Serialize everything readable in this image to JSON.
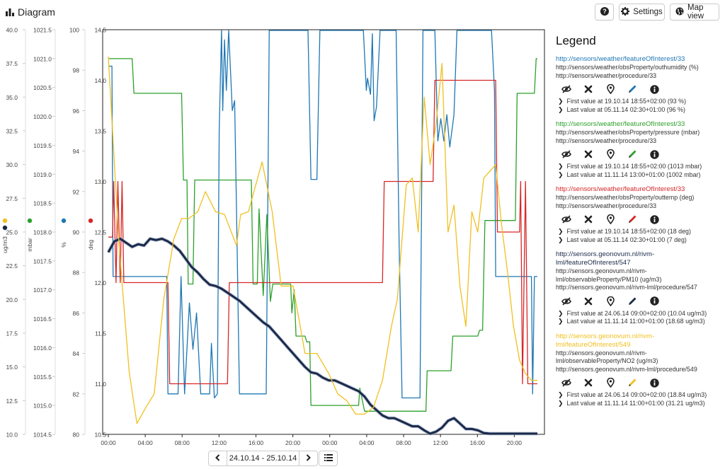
{
  "header": {
    "title": "Diagram",
    "settings_label": "Settings",
    "mapview_label": "Map view"
  },
  "legend": {
    "title": "Legend",
    "entries": [
      {
        "link": "http://sensors/weather/featureOfInterest/33",
        "property": "http://sensors/weather/obsProperty/outhumidity (%)",
        "procedure": "http://sensors/weather/procedure/33",
        "first": "First value at 19.10.14 18:55+02:00 (93 %)",
        "last": "Last value at 05.11.14 02:30+01:00 (96 %)",
        "color": "#1f77b4"
      },
      {
        "link": "http://sensors/weather/featureOfInterest/33",
        "property": "http://sensors/weather/obsProperty/pressure (mbar)",
        "procedure": "http://sensors/weather/procedure/33",
        "first": "First value at 19.10.14 18:55+02:00 (1013 mbar)",
        "last": "Last value at 11.11.14 13:00+01:00 (1002 mbar)",
        "color": "#2ca02c"
      },
      {
        "link": "http://sensors/weather/featureOfInterest/33",
        "property": "http://sensors/weather/obsProperty/outtemp (deg)",
        "procedure": "http://sensors/weather/procedure/33",
        "first": "First value at 19.10.14 18:55+02:00 (18 deg)",
        "last": "Last value at 05.11.14 02:30+01:00 (7 deg)",
        "color": "#d62728"
      },
      {
        "link": "http://sensors.geonovum.nl/rivm-lml/featureOfInterest/547",
        "property": "http://sensors.geonovum.nl/rivm-lml/observableProperty/PM10 (ug/m3)",
        "procedure": "http://sensors.geonovum.nl/rivm-lml/procedure/547",
        "first": "First value at 24.06.14 09:00+02:00 (10.04 ug/m3)",
        "last": "Last value at 11.11.14 11:00+01:00 (18.68 ug/m3)",
        "color": "#1b2a4a"
      },
      {
        "link": "http://sensors.geonovum.nl/rivm-lml/featureOfInterest/549",
        "property": "http://sensors.geonovum.nl/rivm-lml/observableProperty/NO2 (ug/m3)",
        "procedure": "http://sensors.geonovum.nl/rivm-lml/procedure/549",
        "first": "First value at 24.06.14 09:00+02:00 (18.84 ug/m3)",
        "last": "Last value at 11.11.14 11:00+01:00 (31.21 ug/m3)",
        "color": "#f0c020"
      }
    ]
  },
  "time_nav": {
    "range_label": "24.10.14 - 25.10.14"
  },
  "chart_data": {
    "type": "line",
    "x_ticks": [
      "00:00",
      "04:00",
      "08:00",
      "12:00",
      "16:00",
      "20:00",
      "00:00",
      "04:00",
      "08:00",
      "12:00",
      "16:00",
      "20:00"
    ],
    "x_range_hours": [
      0,
      48
    ],
    "axes": [
      {
        "label": "ug/m3",
        "min": 10.0,
        "max": 40.0,
        "ticks": [
          "10.0",
          "12.5",
          "15.0",
          "17.5",
          "20.0",
          "22.5",
          "25.0",
          "27.5",
          "30.0",
          "32.5",
          "35.0",
          "37.5",
          "40.0"
        ],
        "dot_color": "#f0c020",
        "dot_color2": "#1b2a4a"
      },
      {
        "label": "mbar",
        "min": 1014.5,
        "max": 1021.5,
        "ticks": [
          "1014.5",
          "1015.0",
          "1015.5",
          "1016.0",
          "1016.5",
          "1017.0",
          "1017.5",
          "1018.0",
          "1018.5",
          "1019.0",
          "1019.5",
          "1020.0",
          "1020.5",
          "1021.0",
          "1021.5"
        ],
        "dot_color": "#2ca02c"
      },
      {
        "label": "%",
        "min": 80,
        "max": 100,
        "ticks": [
          "80",
          "82",
          "84",
          "86",
          "88",
          "90",
          "92",
          "94",
          "96",
          "98",
          "100"
        ],
        "dot_color": "#1f77b4"
      },
      {
        "label": "deg",
        "min": 10.5,
        "max": 14.5,
        "ticks": [
          "10.5",
          "11.0",
          "11.5",
          "12.0",
          "12.5",
          "13.0",
          "13.5",
          "14.0",
          "14.5"
        ],
        "dot_color": "#d62728"
      }
    ],
    "series": [
      {
        "axis": 2,
        "color": "#1f77b4",
        "width": 1.3,
        "points": [
          [
            0,
            98.2
          ],
          [
            0.6,
            98.2
          ],
          [
            0.8,
            87.8
          ],
          [
            9.8,
            87.8
          ],
          [
            10,
            82
          ],
          [
            11.7,
            82
          ],
          [
            12.2,
            87.8
          ],
          [
            12.8,
            82
          ],
          [
            13.6,
            86.5
          ],
          [
            14.2,
            84.2
          ],
          [
            14.8,
            86
          ],
          [
            15.5,
            82
          ],
          [
            17,
            82
          ],
          [
            17.3,
            84.5
          ],
          [
            17.8,
            81.8
          ],
          [
            18.3,
            82
          ],
          [
            18.6,
            95
          ],
          [
            19,
            100
          ],
          [
            19.2,
            96
          ],
          [
            19.5,
            99.5
          ],
          [
            19.8,
            97
          ],
          [
            20.2,
            100
          ],
          [
            20.8,
            96
          ],
          [
            21.2,
            96.5
          ],
          [
            21.6,
            89.5
          ],
          [
            22,
            82
          ],
          [
            26.5,
            82
          ],
          [
            27,
            100
          ],
          [
            33.5,
            100
          ],
          [
            34,
            92.6
          ],
          [
            35,
            92.6
          ],
          [
            35.5,
            100
          ],
          [
            42.8,
            100
          ],
          [
            43.3,
            97
          ],
          [
            43.5,
            97.6
          ],
          [
            44,
            96.8
          ],
          [
            44.3,
            99.8
          ],
          [
            44.6,
            95.5
          ],
          [
            45,
            96.2
          ],
          [
            45.6,
            100
          ],
          [
            48.3,
            100
          ],
          [
            48.8,
            89.5
          ],
          [
            49.3,
            81.8
          ],
          [
            52.3,
            81.8
          ],
          [
            52.8,
            100
          ],
          [
            54.8,
            100
          ],
          [
            55.3,
            94.5
          ],
          [
            55.8,
            95.6
          ],
          [
            56.3,
            94.5
          ],
          [
            56.8,
            95.8
          ],
          [
            57.3,
            94.2
          ],
          [
            58,
            95.8
          ],
          [
            58.5,
            100
          ],
          [
            64.3,
            100
          ],
          [
            64.8,
            97
          ],
          [
            65,
            87.8
          ],
          [
            71,
            87.8
          ],
          [
            71.2,
            82
          ],
          [
            71.5,
            87.8
          ],
          [
            72,
            87.8
          ]
        ]
      },
      {
        "axis": 1,
        "color": "#2ca02c",
        "width": 1.3,
        "points": [
          [
            0,
            1021.0
          ],
          [
            4,
            1021.0
          ],
          [
            4.3,
            1020.4
          ],
          [
            12.3,
            1020.4
          ],
          [
            12.6,
            1018.9
          ],
          [
            13.2,
            1018.9
          ],
          [
            13.4,
            1017.1
          ],
          [
            14.2,
            1017.1
          ],
          [
            14.5,
            1018.9
          ],
          [
            24,
            1018.9
          ],
          [
            24.3,
            1017.1
          ],
          [
            25,
            1017.1
          ],
          [
            25.3,
            1018.4
          ],
          [
            26,
            1016.9
          ],
          [
            26.6,
            1018.3
          ],
          [
            27.2,
            1016.8
          ],
          [
            27.6,
            1017.1
          ],
          [
            30.6,
            1017.1
          ],
          [
            30.8,
            1016.6
          ],
          [
            31.2,
            1017.0
          ],
          [
            31.5,
            1016.2
          ],
          [
            33,
            1016.2
          ],
          [
            33.3,
            1016.1
          ],
          [
            33.8,
            1016.1
          ],
          [
            34,
            1015
          ],
          [
            42,
            1015
          ],
          [
            42.2,
            1015.3
          ],
          [
            43,
            1014.9
          ],
          [
            53.3,
            1014.9
          ],
          [
            53.5,
            1015.6
          ],
          [
            57.5,
            1015.6
          ],
          [
            57.8,
            1016.2
          ],
          [
            62,
            1016.2
          ],
          [
            62.3,
            1016.3
          ],
          [
            62.8,
            1016.3
          ],
          [
            63.2,
            1018.2
          ],
          [
            68.3,
            1018.2
          ],
          [
            68.6,
            1020.4
          ],
          [
            71.5,
            1020.4
          ],
          [
            71.8,
            1021.0
          ],
          [
            72,
            1021.0
          ]
        ]
      },
      {
        "axis": 3,
        "color": "#d62728",
        "width": 1.3,
        "points": [
          [
            0,
            12.45
          ],
          [
            0.7,
            12.45
          ],
          [
            0.9,
            13.0
          ],
          [
            1.3,
            12.0
          ],
          [
            1.6,
            13.0
          ],
          [
            2,
            12.0
          ],
          [
            2.3,
            13.0
          ],
          [
            2.6,
            12.0
          ],
          [
            3,
            12.0
          ],
          [
            10,
            12.0
          ],
          [
            10.3,
            11.0
          ],
          [
            20,
            11.0
          ],
          [
            20.3,
            12.0
          ],
          [
            46,
            12.0
          ],
          [
            46.3,
            13.0
          ],
          [
            54.5,
            13.0
          ],
          [
            54.8,
            14.0
          ],
          [
            65,
            14.0
          ],
          [
            65.3,
            12.5
          ],
          [
            69,
            12.5
          ],
          [
            69.2,
            13.0
          ],
          [
            69.5,
            11.0
          ],
          [
            70,
            13.0
          ],
          [
            70.4,
            11.0
          ],
          [
            72,
            11.0
          ]
        ]
      },
      {
        "axis": 0,
        "color": "#1b2a4a",
        "width": 3.0,
        "points": [
          [
            0,
            23.5
          ],
          [
            1,
            24.3
          ],
          [
            2,
            24.5
          ],
          [
            3,
            24.2
          ],
          [
            4,
            23.9
          ],
          [
            5,
            24.1
          ],
          [
            6,
            24.0
          ],
          [
            7,
            24.5
          ],
          [
            8,
            24.4
          ],
          [
            9,
            24.5
          ],
          [
            10,
            24.3
          ],
          [
            11,
            24.0
          ],
          [
            12,
            23.6
          ],
          [
            13,
            23.0
          ],
          [
            14,
            22.4
          ],
          [
            15,
            22.0
          ],
          [
            16,
            21.5
          ],
          [
            17,
            21.1
          ],
          [
            18,
            21.0
          ],
          [
            19,
            20.8
          ],
          [
            20,
            20.5
          ],
          [
            21,
            20.2
          ],
          [
            22,
            19.9
          ],
          [
            23,
            19.5
          ],
          [
            24,
            19.1
          ],
          [
            25,
            18.7
          ],
          [
            26,
            18.3
          ],
          [
            27,
            18.0
          ],
          [
            28,
            17.5
          ],
          [
            29,
            17.0
          ],
          [
            30,
            16.5
          ],
          [
            31,
            16.0
          ],
          [
            32,
            15.5
          ],
          [
            33,
            15.0
          ],
          [
            34,
            14.6
          ],
          [
            35,
            14.5
          ],
          [
            36,
            14.2
          ],
          [
            37,
            14.0
          ],
          [
            38,
            14.0
          ],
          [
            39,
            13.8
          ],
          [
            40,
            13.6
          ],
          [
            41,
            13.4
          ],
          [
            42,
            13.2
          ],
          [
            43,
            12.8
          ],
          [
            44,
            12.2
          ],
          [
            45,
            11.8
          ],
          [
            46,
            11.4
          ],
          [
            47,
            11.2
          ],
          [
            48,
            11.2
          ],
          [
            49,
            11.0
          ],
          [
            50,
            10.8
          ],
          [
            51,
            10.6
          ],
          [
            52,
            10.6
          ],
          [
            53,
            10.3
          ],
          [
            54,
            10.0
          ],
          [
            55,
            10.2
          ],
          [
            56,
            10.5
          ],
          [
            57,
            11.0
          ],
          [
            58,
            11.2
          ],
          [
            59,
            10.8
          ],
          [
            60,
            10.4
          ],
          [
            61,
            10.4
          ],
          [
            62,
            10.3
          ],
          [
            63,
            10.1
          ],
          [
            64,
            9.9
          ],
          [
            65,
            9.7
          ],
          [
            66,
            9.6
          ],
          [
            67,
            9.6
          ],
          [
            68,
            9.7
          ],
          [
            69,
            9.6
          ],
          [
            70,
            9.7
          ],
          [
            71,
            9.6
          ],
          [
            72,
            9.5
          ]
        ]
      },
      {
        "axis": 0,
        "color": "#f0c020",
        "width": 1.3,
        "points": [
          [
            0,
            38.0
          ],
          [
            1.8,
            24.0
          ],
          [
            3.5,
            14.6
          ],
          [
            4.8,
            10.8
          ],
          [
            6.3,
            12.0
          ],
          [
            7.7,
            13.0
          ],
          [
            9.3,
            20.0
          ],
          [
            11,
            24.5
          ],
          [
            12.3,
            26.0
          ],
          [
            13.5,
            26.0
          ],
          [
            15,
            26.5
          ],
          [
            16.3,
            28.0
          ],
          [
            18,
            26.5
          ],
          [
            19.5,
            26.3
          ],
          [
            21.5,
            24.0
          ],
          [
            22.2,
            26.3
          ],
          [
            23.5,
            26.5
          ],
          [
            25.8,
            30.2
          ],
          [
            27.5,
            26.5
          ],
          [
            29,
            21.0
          ],
          [
            31,
            21.0
          ],
          [
            33,
            16.0
          ],
          [
            35,
            16.0
          ],
          [
            37,
            14.5
          ],
          [
            38.5,
            13.0
          ],
          [
            40,
            12.5
          ],
          [
            41.5,
            11.5
          ],
          [
            43,
            11.5
          ],
          [
            44.5,
            12.0
          ],
          [
            46,
            14.0
          ],
          [
            47.5,
            18.0
          ],
          [
            48.5,
            20.0
          ],
          [
            50,
            28.5
          ],
          [
            51,
            29.0
          ],
          [
            52,
            25.0
          ],
          [
            53,
            35.0
          ],
          [
            54,
            30.0
          ],
          [
            55,
            33.0
          ],
          [
            56,
            37.5
          ],
          [
            57,
            25.0
          ],
          [
            58,
            27.0
          ],
          [
            59,
            21.0
          ],
          [
            60,
            18.0
          ],
          [
            61,
            26.5
          ],
          [
            62,
            25.0
          ],
          [
            63,
            29.0
          ],
          [
            64,
            29.5
          ],
          [
            65,
            30.0
          ],
          [
            66,
            25.5
          ],
          [
            67,
            22.0
          ],
          [
            68,
            18.0
          ],
          [
            69,
            15.5
          ],
          [
            70,
            14.5
          ],
          [
            71,
            14.0
          ],
          [
            72,
            14.0
          ]
        ]
      }
    ]
  }
}
